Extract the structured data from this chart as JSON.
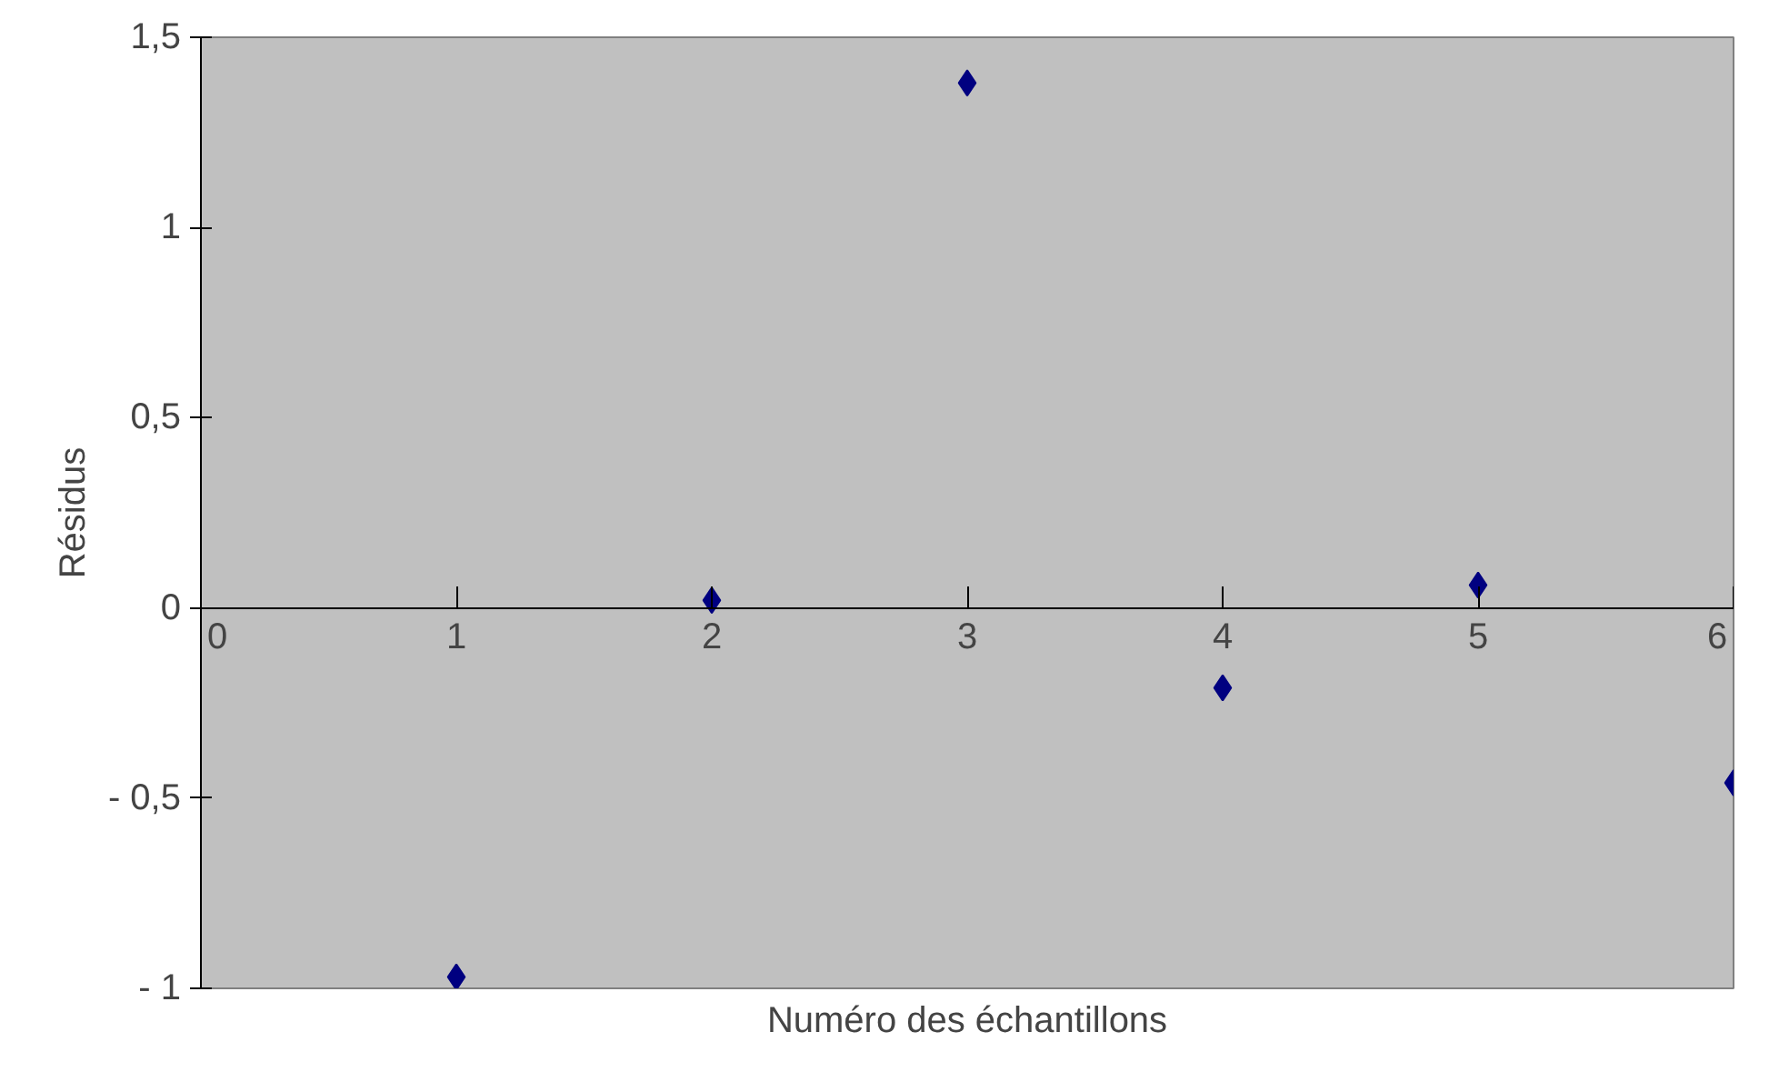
{
  "chart_data": {
    "type": "scatter",
    "xlabel": "Numéro des échantillons",
    "ylabel": "Résidus",
    "x": [
      1,
      2,
      3,
      4,
      5,
      6
    ],
    "series": [
      {
        "color": "#000080",
        "values": [
          -0.97,
          0.02,
          1.38,
          -0.21,
          0.06,
          -0.46
        ]
      }
    ],
    "xlim": [
      0,
      6
    ],
    "xticks": [
      0,
      1,
      2,
      3,
      4,
      5,
      6
    ],
    "ylim": [
      -1,
      1.5
    ],
    "yticks": [
      {
        "value": -1,
        "label": "- 1"
      },
      {
        "value": -0.5,
        "label": "- 0,5"
      },
      {
        "value": 0,
        "label": "0"
      },
      {
        "value": 0.5,
        "label": "0,5"
      },
      {
        "value": 1,
        "label": "1"
      },
      {
        "value": 1.5,
        "label": "1,5"
      }
    ],
    "grid": false,
    "marker": "diamond"
  }
}
